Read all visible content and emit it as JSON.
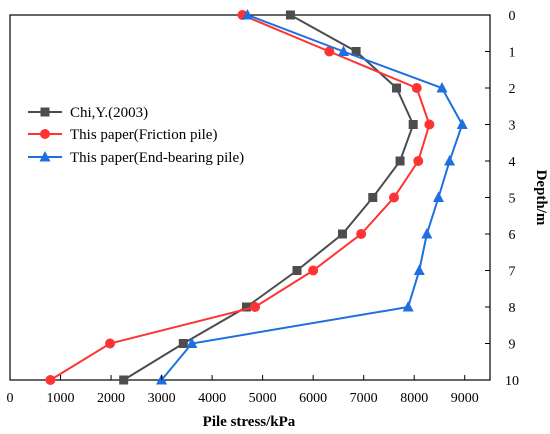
{
  "chart_data": {
    "type": "line",
    "title": "",
    "xlabel": "Pile stress/kPa",
    "ylabel": "Depth/m",
    "xlim": [
      0,
      9500
    ],
    "ylim": [
      0,
      10
    ],
    "y_inverted": true,
    "y_axis_position": "right",
    "x_ticks": [
      0,
      1000,
      2000,
      3000,
      4000,
      5000,
      6000,
      7000,
      8000,
      9000
    ],
    "y_ticks": [
      0,
      1,
      2,
      3,
      4,
      5,
      6,
      7,
      8,
      9,
      10
    ],
    "grid": false,
    "legend_position": "left",
    "series": [
      {
        "name": "Chi,Y.(2003)",
        "color": "#4d4d4d",
        "marker": "square",
        "points": [
          {
            "x": 5550,
            "y": 0
          },
          {
            "x": 6850,
            "y": 1
          },
          {
            "x": 7650,
            "y": 2
          },
          {
            "x": 7980,
            "y": 3
          },
          {
            "x": 7720,
            "y": 4
          },
          {
            "x": 7180,
            "y": 5
          },
          {
            "x": 6580,
            "y": 6
          },
          {
            "x": 5680,
            "y": 7
          },
          {
            "x": 4680,
            "y": 8
          },
          {
            "x": 3430,
            "y": 9
          },
          {
            "x": 2250,
            "y": 10
          }
        ]
      },
      {
        "name": "This paper(Friction pile)",
        "color": "#ff3333",
        "marker": "circle",
        "points": [
          {
            "x": 4600,
            "y": 0
          },
          {
            "x": 6320,
            "y": 1
          },
          {
            "x": 8050,
            "y": 2
          },
          {
            "x": 8300,
            "y": 3
          },
          {
            "x": 8080,
            "y": 4
          },
          {
            "x": 7600,
            "y": 5
          },
          {
            "x": 6950,
            "y": 6
          },
          {
            "x": 6000,
            "y": 7
          },
          {
            "x": 4850,
            "y": 8
          },
          {
            "x": 1980,
            "y": 9
          },
          {
            "x": 800,
            "y": 10
          }
        ]
      },
      {
        "name": "This paper(End-bearing pile)",
        "color": "#1f6fe0",
        "marker": "triangle",
        "points": [
          {
            "x": 4700,
            "y": 0
          },
          {
            "x": 6600,
            "y": 1
          },
          {
            "x": 8550,
            "y": 2
          },
          {
            "x": 8950,
            "y": 3
          },
          {
            "x": 8700,
            "y": 4
          },
          {
            "x": 8480,
            "y": 5
          },
          {
            "x": 8250,
            "y": 6
          },
          {
            "x": 8100,
            "y": 7
          },
          {
            "x": 7880,
            "y": 8
          },
          {
            "x": 3600,
            "y": 9
          },
          {
            "x": 3000,
            "y": 10
          }
        ]
      }
    ]
  }
}
